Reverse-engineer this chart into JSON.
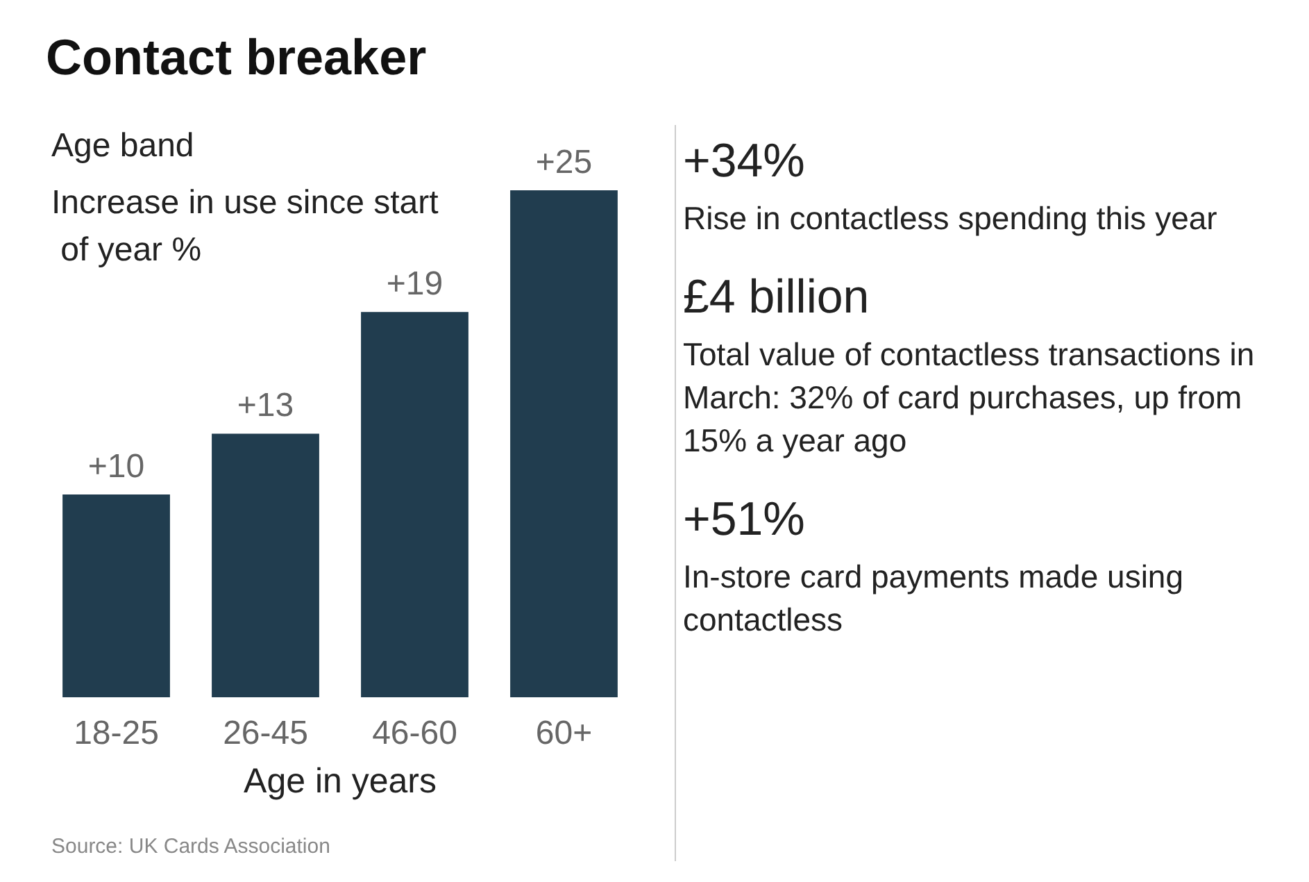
{
  "chart_data": [
    {
      "type": "bar",
      "title": "Contact breaker",
      "subtitle": "Age band",
      "ylabel": "Increase in use since start of year %",
      "xlabel": "Age in years",
      "categories": [
        "18-25",
        "26-45",
        "46-60",
        "60+"
      ],
      "values": [
        10,
        13,
        19,
        25
      ],
      "value_labels": [
        "+10",
        "+13",
        "+19",
        "+25"
      ],
      "color": "#213d4f",
      "annotations": [
        "Source: UK Cards Association"
      ]
    },
    {
      "type": "other",
      "annotations": [
        "+34%",
        "Rise in contactless spending this year",
        "£4 billion",
        "Total value of contactless transactions in March: 32% of card purchases, up from 15% a year ago",
        "+51%",
        "In-store card payments made using contactless"
      ]
    }
  ]
}
